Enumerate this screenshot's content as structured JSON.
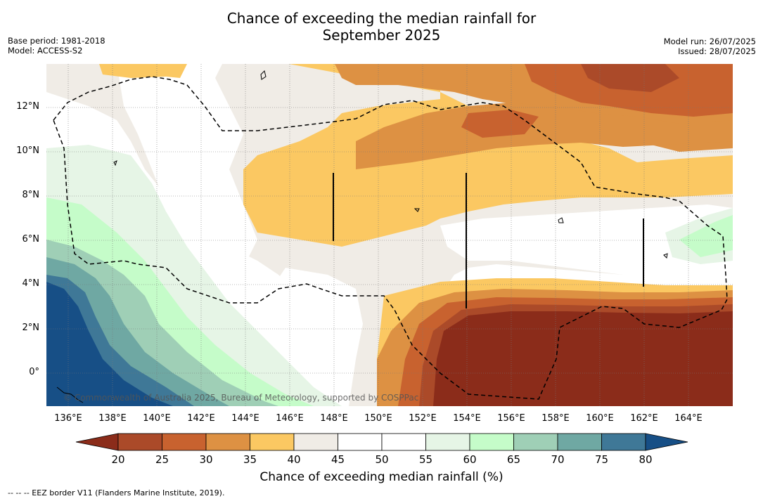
{
  "header": {
    "title_line1": "Chance of exceeding the median rainfall for",
    "title_line2": "September 2025",
    "base_period": "Base period: 1981-2018",
    "model": "Model: ACCESS-S2",
    "model_run": "Model run: 26/07/2025",
    "issued": "Issued: 28/07/2025"
  },
  "map": {
    "lat_labels": [
      "12°N",
      "10°N",
      "8°N",
      "6°N",
      "4°N",
      "2°N",
      "0°"
    ],
    "lon_labels": [
      "136°E",
      "138°E",
      "140°E",
      "142°E",
      "144°E",
      "146°E",
      "148°E",
      "150°E",
      "152°E",
      "154°E",
      "156°E",
      "158°E",
      "160°E",
      "162°E",
      "164°E"
    ],
    "copyright": "© Commonwealth of Australia 2025, Bureau of Meteorology, supported by COSPPac"
  },
  "colorbar": {
    "ticks": [
      "20",
      "25",
      "30",
      "35",
      "40",
      "45",
      "50",
      "55",
      "60",
      "65",
      "70",
      "75",
      "80"
    ],
    "colors": [
      "#8b2c1a",
      "#ab4a29",
      "#c8622f",
      "#dd9143",
      "#fbc862",
      "#f0ece6",
      "#ffffff",
      "#ffffff",
      "#e6f5e6",
      "#c5fcc9",
      "#9fcfb6",
      "#6fa8a3",
      "#3f7897",
      "#174f86"
    ],
    "title": "Chance of exceeding median rainfall (%)"
  },
  "footnote": "--  --  -- EEZ border V11 (Flanders Marine Institute, 2019)."
}
